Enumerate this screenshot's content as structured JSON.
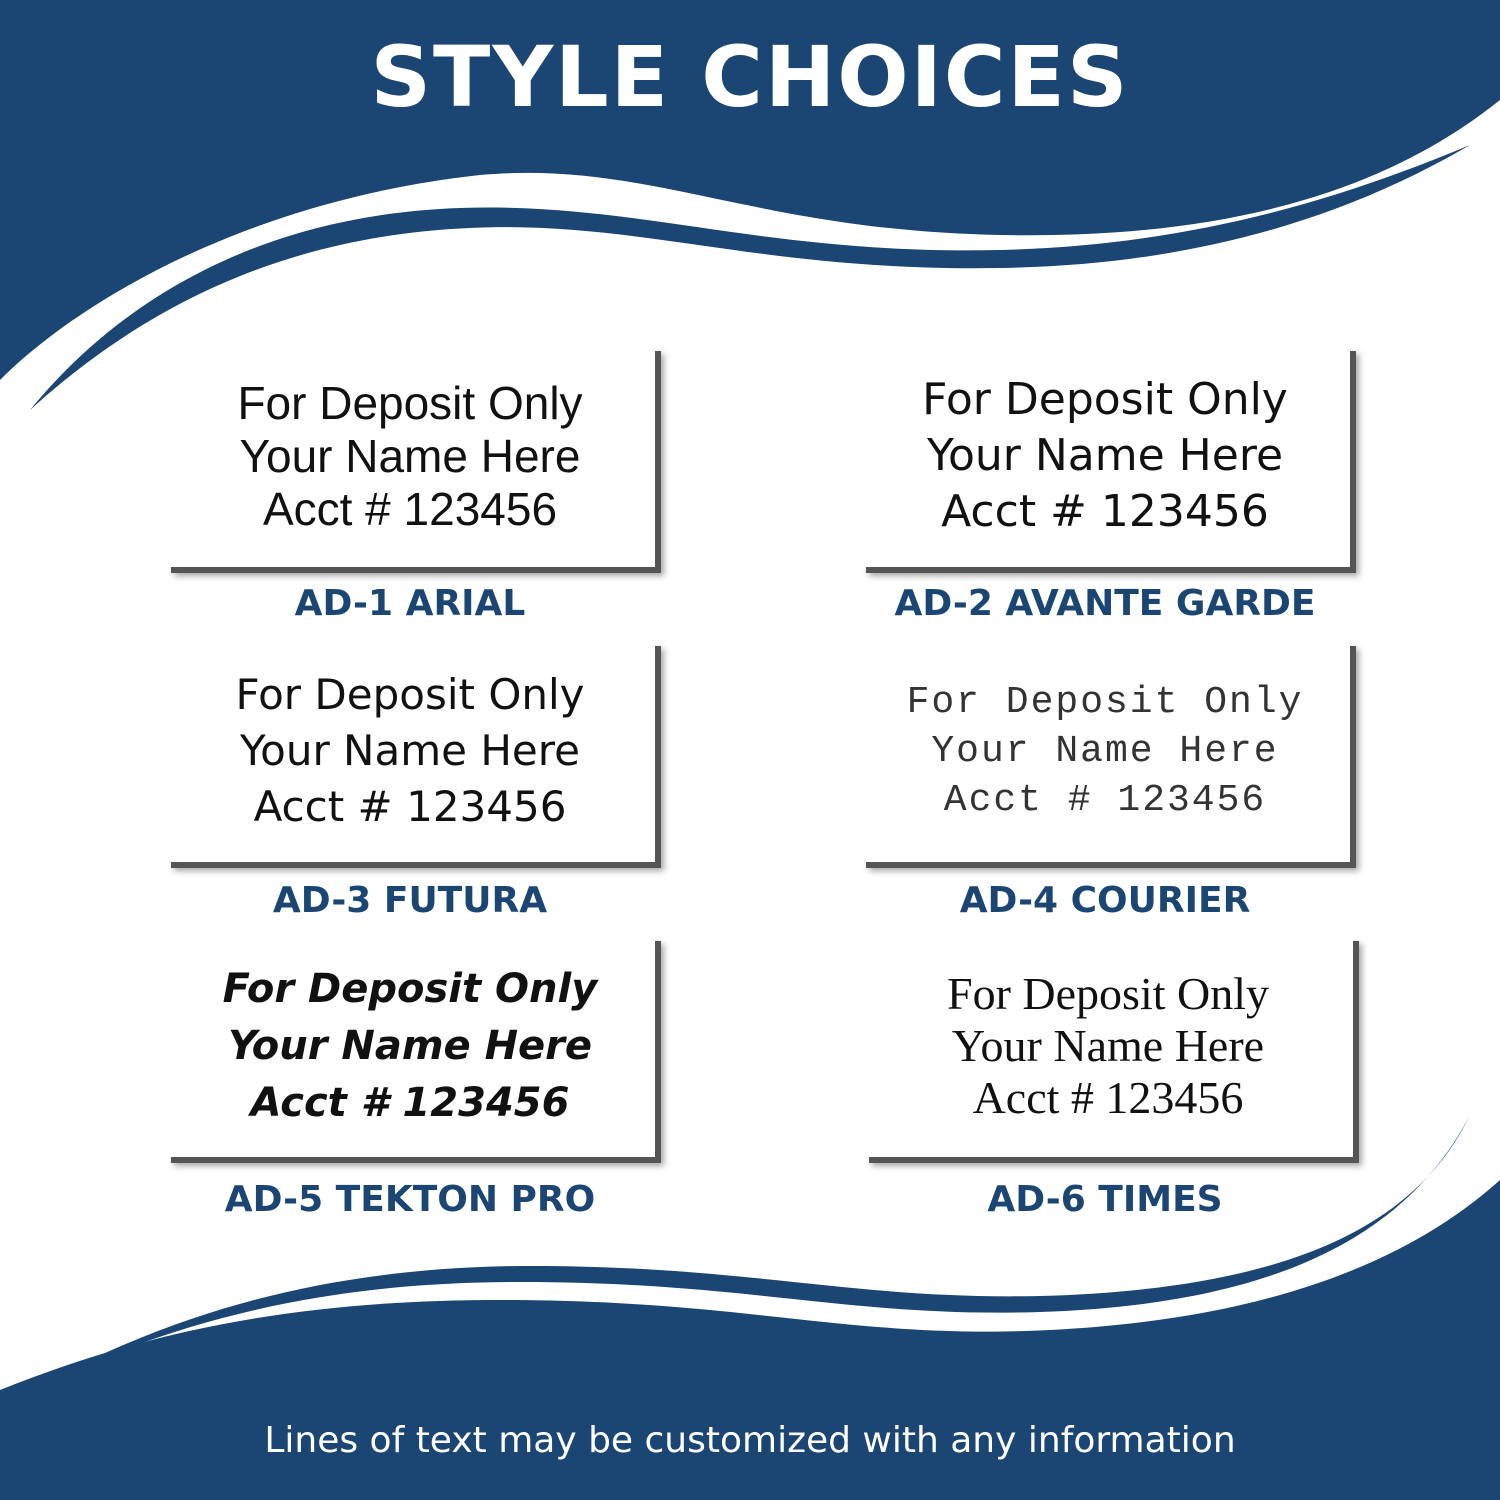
{
  "title": "STYLE CHOICES",
  "brand_color": "#1b4674",
  "styles": [
    {
      "label": "AD-1 ARIAL",
      "lines": [
        "For Deposit Only",
        "Your Name Here",
        "Acct # 123456"
      ]
    },
    {
      "label": "AD-2 AVANTE GARDE",
      "lines": [
        "For Deposit Only",
        "Your Name Here",
        "Acct # 123456"
      ]
    },
    {
      "label": "AD-3 FUTURA",
      "lines": [
        "For Deposit Only",
        "Your Name Here",
        "Acct # 123456"
      ]
    },
    {
      "label": "AD-4 COURIER",
      "lines": [
        "For Deposit Only",
        "Your Name Here",
        "Acct # 123456"
      ]
    },
    {
      "label": "AD-5 TEKTON PRO",
      "lines": [
        "For Deposit Only",
        "Your Name Here",
        "Acct # 123456"
      ]
    },
    {
      "label": "AD-6 TIMES",
      "lines": [
        "For Deposit Only",
        "Your Name Here",
        "Acct # 123456"
      ]
    }
  ],
  "footer": "Lines of text may be customized with any information"
}
